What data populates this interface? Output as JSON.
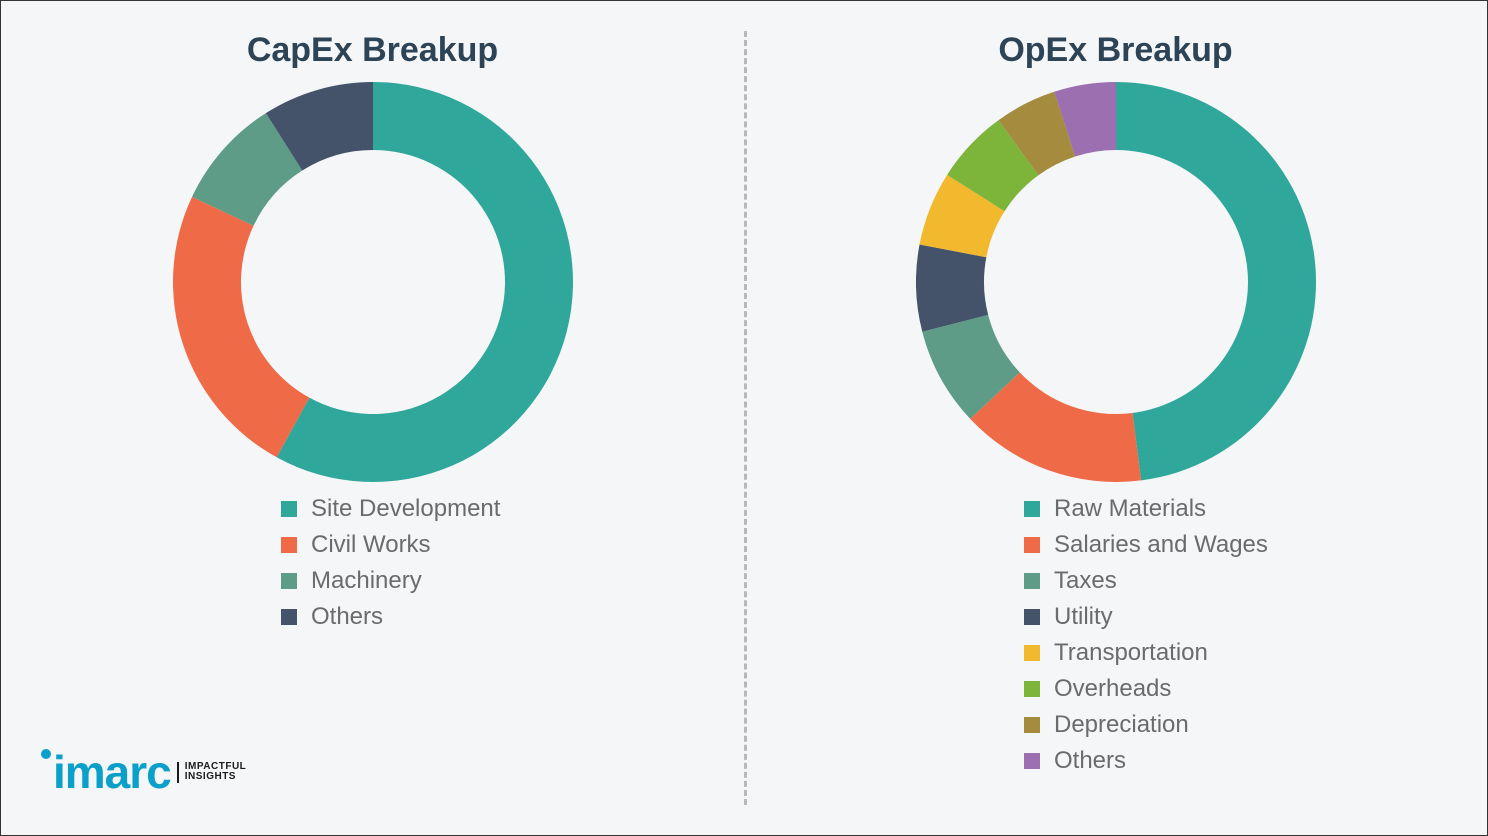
{
  "divider_color": "#b8b8b8",
  "background_color": "#f4f6f7",
  "brand": {
    "name": "imarc",
    "tagline_line1": "IMPACTFUL",
    "tagline_line2": "INSIGHTS",
    "color": "#0aa0c9"
  },
  "capex": {
    "title": "CapEx Breakup",
    "title_fontsize": 34,
    "title_color": "#2d4356",
    "type": "donut",
    "outer_radius": 200,
    "inner_radius": 132,
    "legend_fontsize": 24,
    "legend_text_color": "#6b6b6b",
    "slices": [
      {
        "label": "Site Development",
        "value": 58,
        "color": "#2fa79a"
      },
      {
        "label": "Civil Works",
        "value": 24,
        "color": "#ef6b47"
      },
      {
        "label": "Machinery",
        "value": 9,
        "color": "#5e9c87"
      },
      {
        "label": "Others",
        "value": 9,
        "color": "#44536a"
      }
    ]
  },
  "opex": {
    "title": "OpEx Breakup",
    "title_fontsize": 34,
    "title_color": "#2d4356",
    "type": "donut",
    "outer_radius": 200,
    "inner_radius": 132,
    "legend_fontsize": 24,
    "legend_text_color": "#6b6b6b",
    "slices": [
      {
        "label": "Raw Materials",
        "value": 48,
        "color": "#2fa79a"
      },
      {
        "label": "Salaries and Wages",
        "value": 15,
        "color": "#ef6b47"
      },
      {
        "label": "Taxes",
        "value": 8,
        "color": "#5e9c87"
      },
      {
        "label": "Utility",
        "value": 7,
        "color": "#44536a"
      },
      {
        "label": "Transportation",
        "value": 6,
        "color": "#f2b92f"
      },
      {
        "label": "Overheads",
        "value": 6,
        "color": "#7db53b"
      },
      {
        "label": "Depreciation",
        "value": 5,
        "color": "#a58b3d"
      },
      {
        "label": "Others",
        "value": 5,
        "color": "#9b6fb0"
      }
    ]
  }
}
